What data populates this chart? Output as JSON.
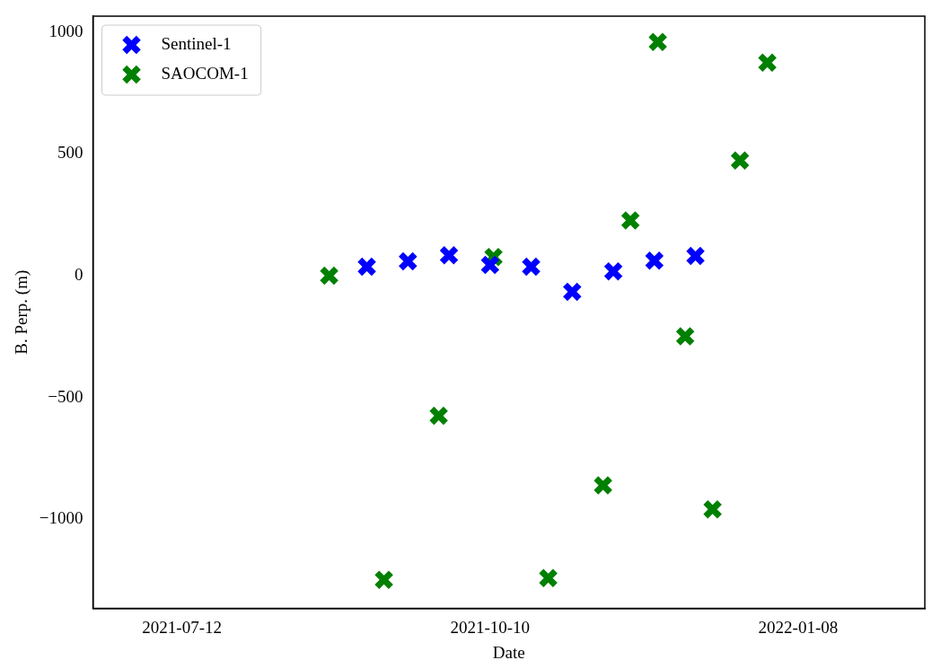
{
  "chart_data": {
    "type": "scatter",
    "xlabel": "Date",
    "ylabel": "B. Perp. (m)",
    "xlim": [
      "2021-06-16",
      "2022-02-14"
    ],
    "xticks": [
      "2021-07-12",
      "2021-10-10",
      "2022-01-08"
    ],
    "ylim": [
      -1366,
      1066
    ],
    "yticks": [
      -1000,
      -500,
      0,
      500,
      1000
    ],
    "grid": false,
    "legend": "top left",
    "marker": "cross",
    "series": [
      {
        "name": "Sentinel-1",
        "color": "#0000ff",
        "x": [
          "2021-09-04",
          "2021-09-16",
          "2021-09-28",
          "2021-10-10",
          "2021-10-22",
          "2021-11-03",
          "2021-11-15",
          "2021-11-27",
          "2021-12-09"
        ],
        "values": [
          37,
          59,
          84,
          44,
          37,
          -66,
          18,
          62,
          81
        ]
      },
      {
        "name": "SAOCOM-1",
        "color": "#008000",
        "x": [
          "2021-08-24",
          "2021-09-09",
          "2021-09-25",
          "2021-10-11",
          "2021-10-27",
          "2021-11-12",
          "2021-11-20",
          "2021-11-28",
          "2021-12-06",
          "2021-12-14",
          "2021-12-22",
          "2021-12-30"
        ],
        "values": [
          0,
          -1249,
          -575,
          77,
          -1242,
          -861,
          227,
          960,
          -249,
          -960,
          473,
          875
        ]
      }
    ]
  }
}
